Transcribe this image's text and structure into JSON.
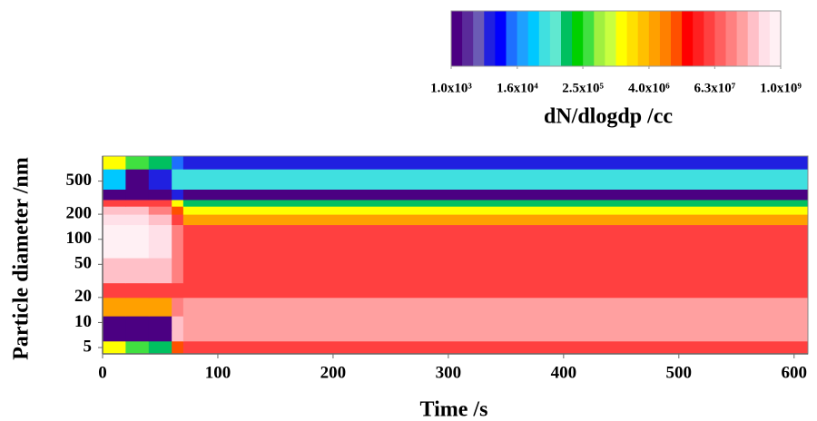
{
  "chart_data": {
    "type": "heatmap",
    "x_label": "Time /s",
    "y_label": "Particle diameter /nm",
    "colorbar_label": "dN/dlogdp /cc",
    "xlim": [
      0,
      612
    ],
    "xticks": [
      0,
      100,
      200,
      300,
      400,
      500,
      600
    ],
    "ylim": [
      4.2,
      1000
    ],
    "yticks": [
      5,
      10,
      20,
      50,
      100,
      200,
      500
    ],
    "y_log": true,
    "xbins": [
      0,
      20,
      40,
      60,
      70,
      612
    ],
    "ybins": [
      4.2,
      6,
      8,
      12,
      20,
      30,
      60,
      150,
      200,
      250,
      300,
      400,
      700,
      1000
    ],
    "z": [
      [
        1000000,
        300000,
        100000,
        10000000,
        60000000
      ],
      [
        1000,
        1000,
        1000,
        300000000,
        200000000
      ],
      [
        1000,
        1000,
        1000,
        300000000,
        200000000
      ],
      [
        5000000,
        5000000,
        5000000,
        100000000,
        200000000
      ],
      [
        60000000,
        60000000,
        60000000,
        60000000,
        60000000
      ],
      [
        300000000,
        300000000,
        300000000,
        100000000,
        60000000
      ],
      [
        800000000,
        800000000,
        500000000,
        100000000,
        60000000
      ],
      [
        500000000,
        500000000,
        300000000,
        60000000,
        5000000
      ],
      [
        300000000,
        300000000,
        100000000,
        10000000,
        1000000
      ],
      [
        60000000,
        60000000,
        60000000,
        1000000,
        100000
      ],
      [
        1000,
        1000,
        1000,
        5000,
        1000
      ],
      [
        30000,
        1000,
        5000,
        50000,
        50000
      ],
      [
        1000000,
        300000,
        100000,
        10000,
        5000
      ]
    ],
    "clim": [
      1000,
      1000000000
    ],
    "colors": [
      "#4b0082",
      "#5a2a9a",
      "#6b5bb5",
      "#2020e0",
      "#0000ff",
      "#1e6fff",
      "#1ea0ff",
      "#00c8ff",
      "#40e0e0",
      "#60e8d0",
      "#00c060",
      "#00d000",
      "#40e040",
      "#a0f040",
      "#c8ff40",
      "#ffff00",
      "#ffe000",
      "#ffc000",
      "#ffa000",
      "#ff8000",
      "#ff5000",
      "#ff0000",
      "#ff2020",
      "#ff4040",
      "#ff6060",
      "#ff8080",
      "#ffa0a0",
      "#ffc0c8",
      "#ffe0e8",
      "#fff0f4"
    ],
    "cticks": [
      {
        "value": 1000,
        "label": "1.0x10³"
      },
      {
        "value": 16000,
        "label": "1.6x10⁴"
      },
      {
        "value": 250000,
        "label": "2.5x10⁵"
      },
      {
        "value": 4000000,
        "label": "4.0x10⁶"
      },
      {
        "value": 63000000,
        "label": "6.3x10⁷"
      },
      {
        "value": 1000000000,
        "label": "1.0x10⁹"
      }
    ]
  }
}
